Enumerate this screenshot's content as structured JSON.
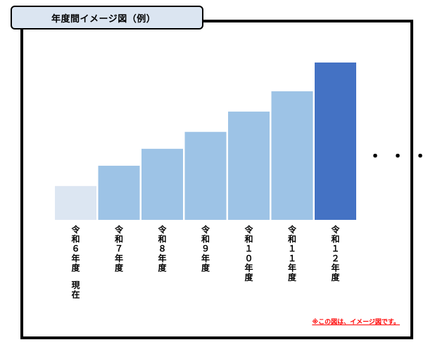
{
  "title": "年度間イメージ図（例）",
  "note": "※この図は、イメージ図です。",
  "ellipsis": "・・・",
  "colors": {
    "light": "#dce6f2",
    "mid": "#9dc3e6",
    "accent": "#4472c4",
    "title_bg": "#dbe5f1",
    "note": "#ff0000"
  },
  "chart_data": {
    "type": "bar",
    "categories": [
      "令和６年度",
      "令和７年度",
      "令和８年度",
      "令和９年度",
      "令和１０年度",
      "令和１１年度",
      "令和１２年度"
    ],
    "category_suffix": [
      "現在",
      "",
      "",
      "",
      "",
      "",
      ""
    ],
    "values": [
      2,
      3.2,
      4.2,
      5.2,
      6.4,
      7.6,
      9.3
    ],
    "value_unit": "relative (no axis printed)",
    "bar_colors": [
      "light",
      "mid",
      "mid",
      "mid",
      "mid",
      "mid",
      "accent"
    ],
    "ylim": [
      0,
      9.3
    ],
    "title": "",
    "xlabel": "",
    "ylabel": "",
    "grid": false,
    "legend": "none"
  }
}
